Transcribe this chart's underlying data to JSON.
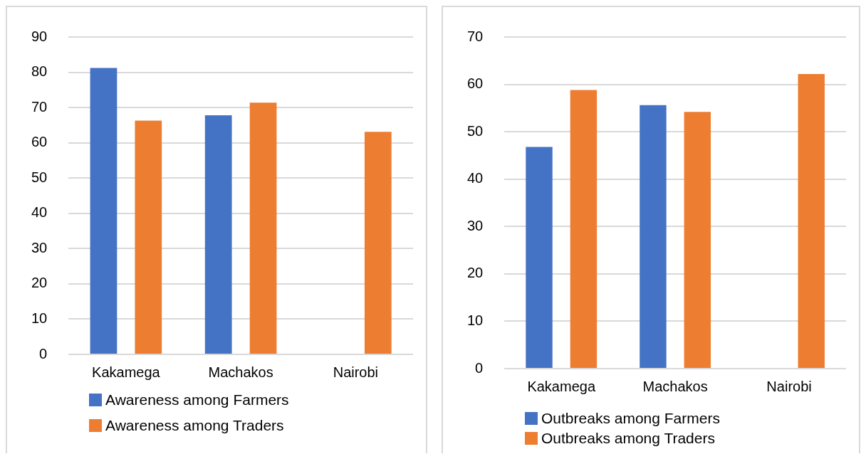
{
  "chart_data": [
    {
      "type": "bar",
      "categories": [
        "Kakamega",
        "Machakos",
        "Nairobi"
      ],
      "series": [
        {
          "name": "Awareness among Farmers",
          "color": "#4472c4",
          "values": [
            81.2,
            67.8,
            null
          ]
        },
        {
          "name": "Awareness among Traders",
          "color": "#ed7d31",
          "values": [
            66.3,
            71.4,
            63.1
          ]
        }
      ],
      "ylim": [
        0,
        90
      ],
      "yticks": [
        0,
        10,
        20,
        30,
        40,
        50,
        60,
        70,
        80,
        90
      ],
      "grid": "y",
      "legend": "bottom"
    },
    {
      "type": "bar",
      "categories": [
        "Kakamega",
        "Machakos",
        "Nairobi"
      ],
      "series": [
        {
          "name": "Outbreaks among Farmers",
          "color": "#4472c4",
          "values": [
            46.8,
            55.6,
            null
          ]
        },
        {
          "name": "Outbreaks among Traders",
          "color": "#ed7d31",
          "values": [
            58.8,
            54.2,
            62.2
          ]
        }
      ],
      "ylim": [
        0,
        70
      ],
      "yticks": [
        0,
        10,
        20,
        30,
        40,
        50,
        60,
        70
      ],
      "grid": "y",
      "legend": "bottom"
    }
  ]
}
